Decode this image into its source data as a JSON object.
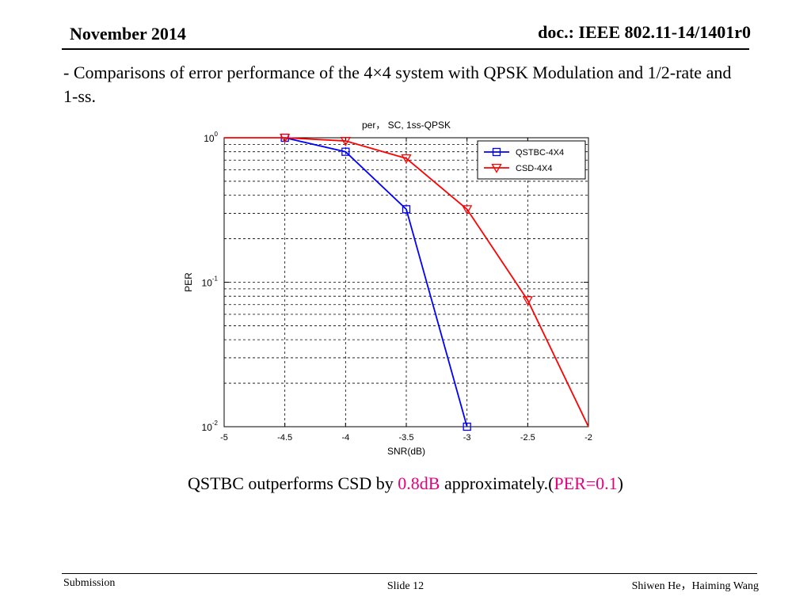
{
  "header": {
    "date": "November 2014",
    "doc": "doc.: IEEE 802.11-14/1401r0"
  },
  "intro": "-  Comparisons of error performance of the 4×4 system with QPSK Modulation and 1/2-rate and 1-ss.",
  "conclusion": {
    "prefix": "QSTBC outperforms CSD by ",
    "gain": "0.8dB",
    "middle": " approximately.(",
    "per": "PER=0.1",
    "suffix": ")"
  },
  "footer": {
    "left": "Submission",
    "center": "Slide 12",
    "right": "Shiwen He，Haiming Wang"
  },
  "colors": {
    "qstbc": "#0000ff",
    "csd": "#ff0000",
    "highlight": "#e6007e"
  },
  "chart_data": {
    "type": "line",
    "title": "per， SC, 1ss-QPSK",
    "xlabel": "SNR(dB)",
    "ylabel": "PER",
    "xlim": [
      -5,
      -2
    ],
    "ylim": [
      0.01,
      1
    ],
    "yscale": "log",
    "grid": true,
    "legend_position": "top-right",
    "x_ticks": [
      "-5",
      "-4.5",
      "-4",
      "-3.5",
      "-3",
      "-2.5",
      "-2"
    ],
    "y_ticks": [
      {
        "base": "10",
        "exp": "0"
      },
      {
        "base": "10",
        "exp": "-1"
      },
      {
        "base": "10",
        "exp": "-2"
      }
    ],
    "series": [
      {
        "name": "QSTBC-4X4",
        "marker": "square",
        "color": "#0000ff",
        "x": [
          -4.5,
          -4,
          -3.5,
          -3
        ],
        "y": [
          1.0,
          0.8,
          0.32,
          0.01
        ]
      },
      {
        "name": "CSD-4X4",
        "marker": "triangle-down",
        "color": "#ff0000",
        "x": [
          -5,
          -4.5,
          -4,
          -3.5,
          -3,
          -2.5,
          -2
        ],
        "y": [
          1.0,
          1.0,
          0.95,
          0.72,
          0.32,
          0.075,
          0.01
        ]
      }
    ]
  }
}
